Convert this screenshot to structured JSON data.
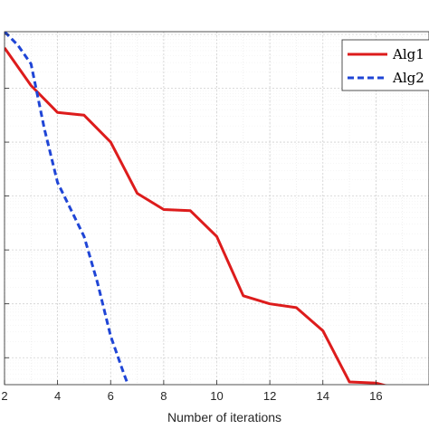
{
  "chart_data": {
    "type": "line",
    "title": "",
    "xlabel": "Number of iterations",
    "ylabel": "",
    "xlim": [
      2,
      18
    ],
    "y_scale": "log",
    "ylim_log10": [
      -6.5,
      0.05
    ],
    "grid": true,
    "legend_placement": "top-right",
    "x_ticks": [
      2,
      4,
      6,
      8,
      10,
      12,
      14,
      16
    ],
    "series": [
      {
        "name": "Alg1",
        "color": "#dd1c1c",
        "style": "solid",
        "x": [
          2,
          3,
          4,
          5,
          6,
          7,
          8,
          9,
          10,
          11,
          12,
          13,
          14,
          15,
          16,
          17,
          18
        ],
        "log10_y": [
          -0.25,
          -0.95,
          -1.45,
          -1.5,
          -2.0,
          -2.95,
          -3.25,
          -3.27,
          -3.75,
          -4.85,
          -5.0,
          -5.07,
          -5.5,
          -6.45,
          -6.47,
          -6.6,
          -7.15
        ]
      },
      {
        "name": "Alg2",
        "color": "#1f45d6",
        "style": "dashed",
        "x": [
          2,
          2.5,
          3,
          3.5,
          4,
          4.5,
          5,
          5.5,
          6,
          6.5,
          7,
          7.5,
          8
        ],
        "log10_y": [
          0.05,
          -0.2,
          -0.55,
          -1.75,
          -2.75,
          -3.25,
          -3.75,
          -4.6,
          -5.6,
          -6.3,
          -6.95,
          -7.2,
          -7.45
        ]
      }
    ]
  }
}
